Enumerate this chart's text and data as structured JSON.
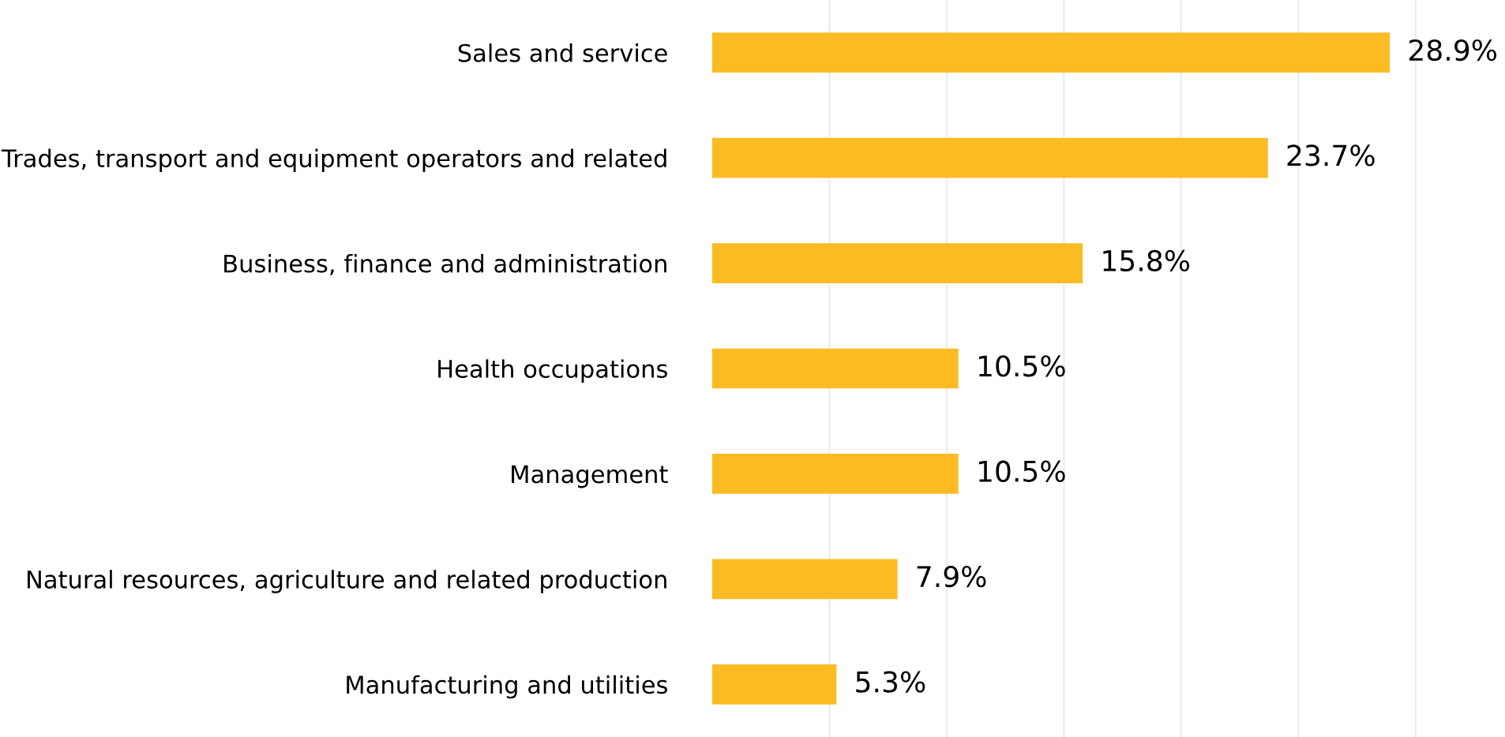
{
  "chart_data": {
    "type": "bar",
    "orientation": "horizontal",
    "categories": [
      "Sales and service",
      "Trades, transport and equipment operators and related",
      "Business, finance and administration",
      "Health occupations",
      "Management",
      "Natural resources, agriculture and related production",
      "Manufacturing and utilities"
    ],
    "values": [
      28.9,
      23.7,
      15.8,
      10.5,
      10.5,
      7.9,
      5.3
    ],
    "value_labels": [
      "28.9%",
      "23.7%",
      "15.8%",
      "10.5%",
      "10.5%",
      "7.9%",
      "5.3%"
    ],
    "color": "#fbbb22",
    "xticks": [
      {
        "value": 5,
        "label": null
      },
      {
        "value": 10,
        "label": null
      },
      {
        "value": 15,
        "label": null
      },
      {
        "value": 20,
        "label": null
      },
      {
        "value": 25,
        "label": null
      },
      {
        "value": 30,
        "label": null
      }
    ],
    "grid": "x",
    "tick_labels": "y"
  }
}
